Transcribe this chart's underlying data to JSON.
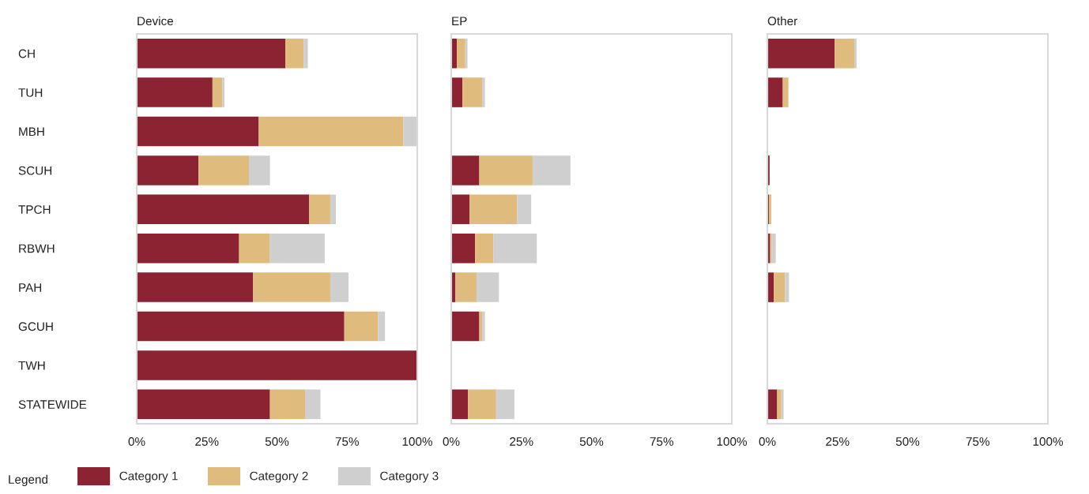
{
  "chart_data": [
    {
      "type": "bar",
      "orientation": "horizontal",
      "stacked": true,
      "title": "Device",
      "legend_title": "Legend",
      "legend": "bottom left",
      "categories": [
        "CH",
        "TUH",
        "MBH",
        "SCUH",
        "TPCH",
        "RBWH",
        "PAH",
        "GCUH",
        "TWH",
        "STATEWIDE"
      ],
      "series": [
        {
          "name": "Category 1",
          "color": "#8b2332",
          "values": [
            53,
            27,
            43.5,
            22,
            61.5,
            36.5,
            41.5,
            74,
            100,
            47.5
          ]
        },
        {
          "name": "Category 2",
          "color": "#dfbb7e",
          "values": [
            6.5,
            3.5,
            51.5,
            18,
            7.5,
            11,
            27.5,
            12,
            0,
            12.5
          ]
        },
        {
          "name": "Category 3",
          "color": "#cfcfcf",
          "values": [
            1.5,
            0.8,
            5,
            7.5,
            2,
            19.5,
            6.5,
            2.5,
            0,
            5.5
          ]
        }
      ],
      "xlim": [
        0,
        100
      ],
      "xticks": [
        {
          "value": 0,
          "label": "0%"
        },
        {
          "value": 25,
          "label": "25%"
        },
        {
          "value": 50,
          "label": "50%"
        },
        {
          "value": 75,
          "label": "75%"
        },
        {
          "value": 100,
          "label": "100%"
        }
      ],
      "grid": false
    },
    {
      "type": "bar",
      "orientation": "horizontal",
      "stacked": true,
      "title": "EP",
      "tick_labels": "x",
      "categories": [
        null,
        null,
        null,
        null,
        null,
        null,
        null,
        null,
        null,
        null
      ],
      "series": [
        {
          "color": "#8b2332",
          "values": [
            2,
            4,
            0,
            10,
            6.5,
            8.5,
            1.5,
            10,
            0,
            6
          ]
        },
        {
          "color": "#dfbb7e",
          "values": [
            3,
            7,
            0,
            19,
            17,
            6.5,
            7.5,
            1,
            0,
            10
          ]
        },
        {
          "color": "#cfcfcf",
          "values": [
            0.8,
            1,
            0,
            13.5,
            5,
            15.5,
            8,
            1,
            0,
            6.5
          ]
        }
      ],
      "xlim": [
        0,
        100
      ],
      "xticks": [
        {
          "value": 0,
          "label": "0%"
        },
        {
          "value": 25,
          "label": "25%"
        },
        {
          "value": 50,
          "label": "50%"
        },
        {
          "value": 75,
          "label": "75%"
        },
        {
          "value": 100,
          "label": "100%"
        }
      ],
      "grid": false
    },
    {
      "type": "bar",
      "orientation": "horizontal",
      "stacked": true,
      "title": "Other",
      "tick_labels": "x",
      "categories": [
        null,
        null,
        null,
        null,
        null,
        null,
        null,
        null,
        null,
        null
      ],
      "series": [
        {
          "color": "#8b2332",
          "values": [
            24,
            5.5,
            0,
            0.8,
            0.6,
            1,
            2.3,
            0,
            0,
            3.5
          ]
        },
        {
          "color": "#dfbb7e",
          "values": [
            7,
            2,
            0,
            0,
            0.8,
            0.6,
            4,
            0,
            0,
            1.5
          ]
        },
        {
          "color": "#cfcfcf",
          "values": [
            0.8,
            0,
            0,
            0,
            0,
            1.4,
            1.4,
            0,
            0,
            0.8
          ]
        }
      ],
      "xlim": [
        0,
        100
      ],
      "xticks": [
        {
          "value": 0,
          "label": "0%"
        },
        {
          "value": 25,
          "label": "25%"
        },
        {
          "value": 50,
          "label": "50%"
        },
        {
          "value": 75,
          "label": "75%"
        },
        {
          "value": 100,
          "label": "100%"
        }
      ],
      "grid": false
    }
  ]
}
